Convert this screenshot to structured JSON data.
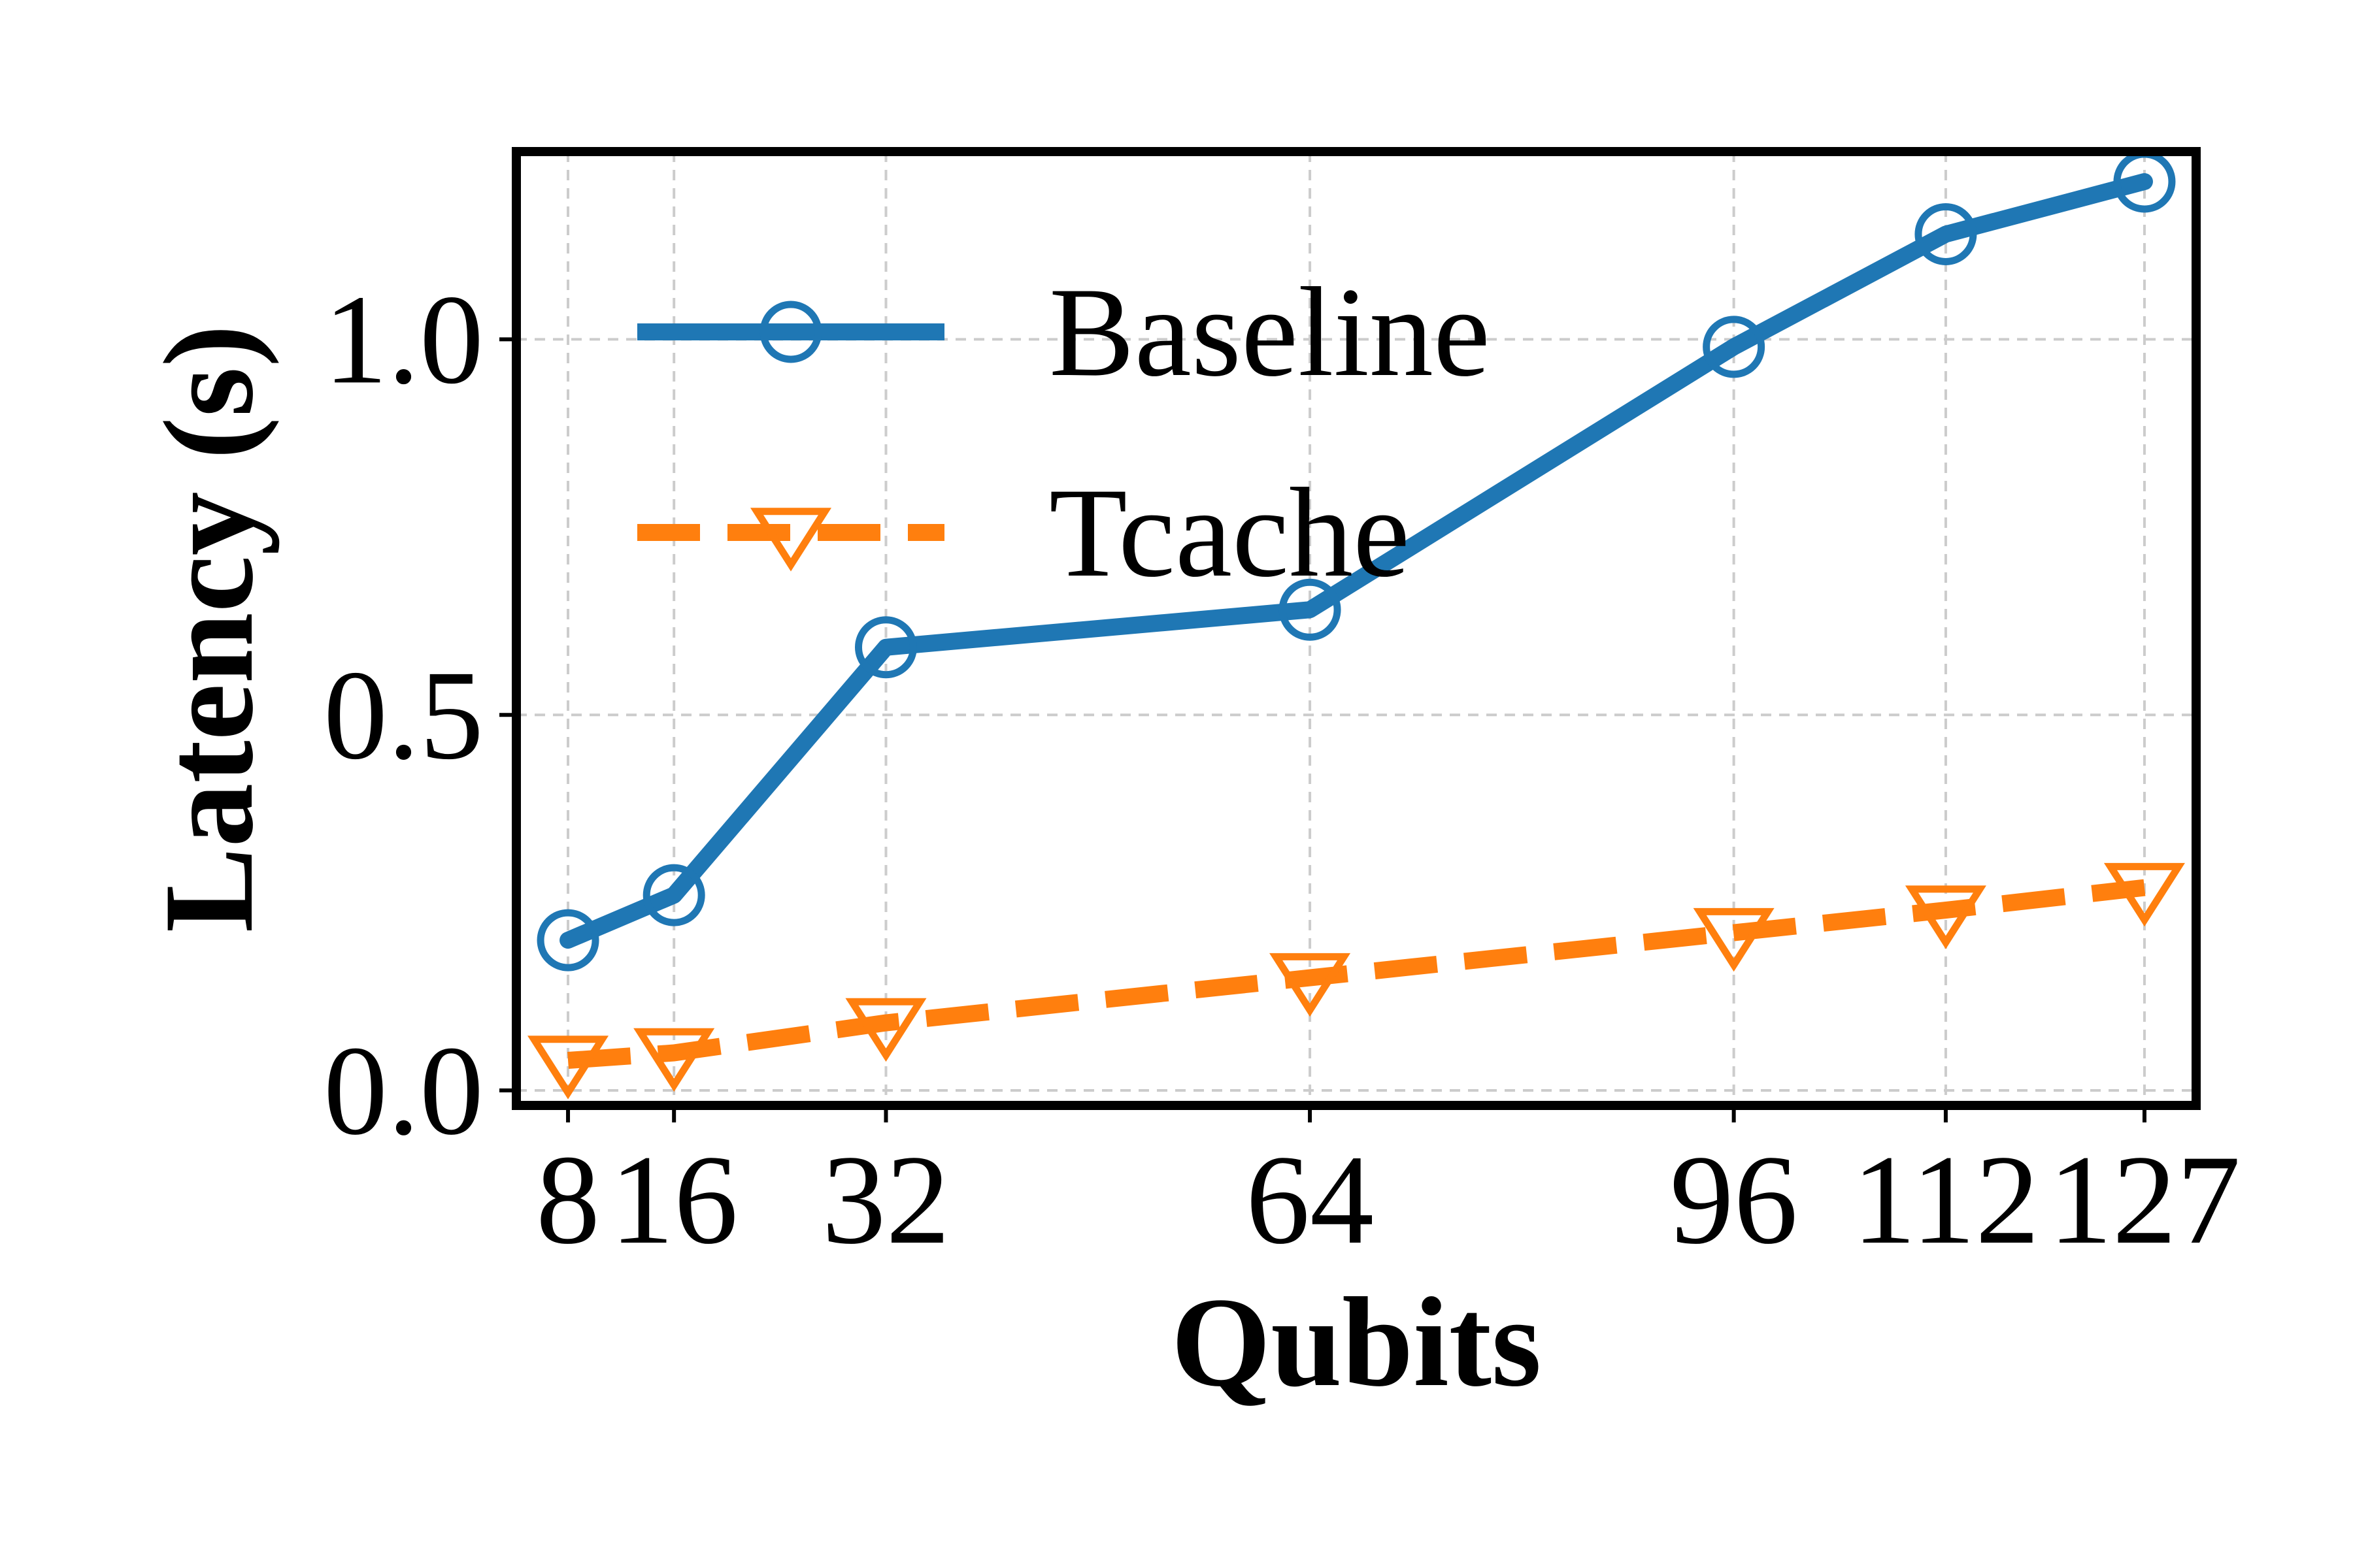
{
  "chart_data": {
    "type": "line",
    "xlabel": "Qubits",
    "ylabel": "Latency (s)",
    "x": [
      8,
      16,
      32,
      64,
      96,
      112,
      127
    ],
    "xticks": [
      "8",
      "16",
      "32",
      "64",
      "96",
      "112",
      "127"
    ],
    "yticks": [
      "0.0",
      "0.5",
      "1.0"
    ],
    "ylim": [
      -0.02,
      1.25
    ],
    "grid": true,
    "legend_position": "upper-left",
    "series": [
      {
        "name": "Baseline",
        "values": [
          0.2,
          0.26,
          0.59,
          0.64,
          0.99,
          1.14,
          1.21
        ],
        "color": "#1f77b4",
        "line_style": "solid",
        "marker": "circle-open"
      },
      {
        "name": "Tcache",
        "values": [
          0.04,
          0.05,
          0.09,
          0.15,
          0.21,
          0.24,
          0.27
        ],
        "color": "#ff7f0e",
        "line_style": "dashed",
        "marker": "triangle-down-open"
      }
    ]
  }
}
